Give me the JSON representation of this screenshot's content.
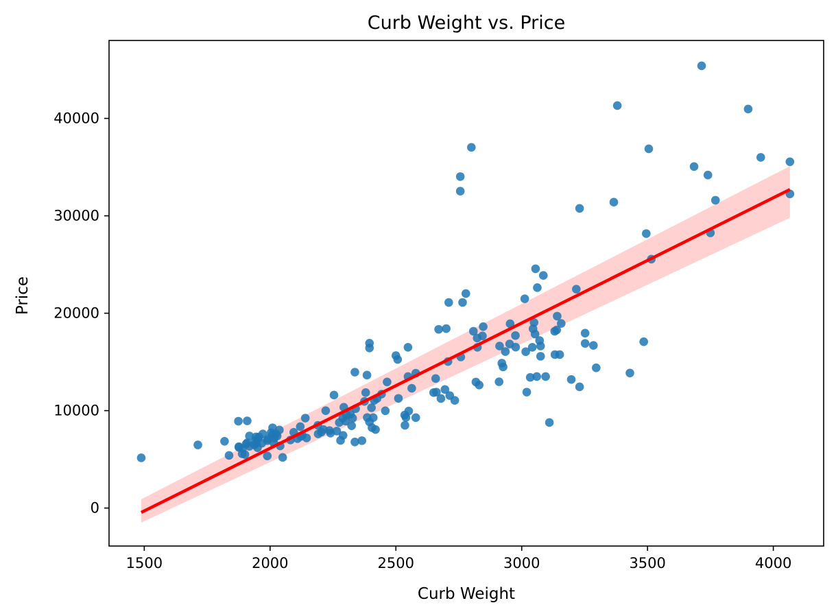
{
  "chart_data": {
    "type": "scatter",
    "title": "Curb Weight vs. Price",
    "xlabel": "Curb Weight",
    "ylabel": "Price",
    "xlim": [
      1360,
      4200
    ],
    "ylim": [
      -3900,
      48000
    ],
    "xticks": [
      1500,
      2000,
      2500,
      3000,
      3500,
      4000
    ],
    "yticks": [
      0,
      10000,
      20000,
      30000,
      40000
    ],
    "xtick_labels": [
      "1500",
      "2000",
      "2500",
      "3000",
      "3500",
      "4000"
    ],
    "ytick_labels": [
      "0",
      "10000",
      "20000",
      "30000",
      "40000"
    ],
    "grid": false,
    "colors": {
      "points": "#1f77b4",
      "regression_line": "#ff0000",
      "confidence_band": "#ffcccc"
    },
    "regression": {
      "x": [
        1488,
        4066
      ],
      "y": [
        -450,
        32700
      ],
      "ci_lower": [
        -1500,
        29800
      ],
      "ci_upper": [
        900,
        35100
      ]
    },
    "points": [
      [
        1488,
        5151
      ],
      [
        1713,
        6479
      ],
      [
        1819,
        6855
      ],
      [
        1837,
        5399
      ],
      [
        1874,
        8916
      ],
      [
        1876,
        6229
      ],
      [
        1876,
        6295
      ],
      [
        1889,
        5572
      ],
      [
        1890,
        6095
      ],
      [
        1900,
        5499
      ],
      [
        1905,
        6575
      ],
      [
        1909,
        6692
      ],
      [
        1909,
        8949
      ],
      [
        1918,
        7395
      ],
      [
        1918,
        6338
      ],
      [
        1938,
        6488
      ],
      [
        1940,
        6849
      ],
      [
        1944,
        7299
      ],
      [
        1945,
        6669
      ],
      [
        1950,
        6189
      ],
      [
        1951,
        7129
      ],
      [
        1956,
        7299
      ],
      [
        1967,
        6649
      ],
      [
        1971,
        7609
      ],
      [
        1989,
        5348
      ],
      [
        1989,
        6918
      ],
      [
        1992,
        7099
      ],
      [
        2004,
        7738
      ],
      [
        2008,
        7499
      ],
      [
        2010,
        8238
      ],
      [
        2015,
        6669
      ],
      [
        2017,
        7198
      ],
      [
        2024,
        7603
      ],
      [
        2028,
        7395
      ],
      [
        2037,
        8013
      ],
      [
        2040,
        6377
      ],
      [
        2050,
        5195
      ],
      [
        2081,
        6989
      ],
      [
        2094,
        7775
      ],
      [
        2109,
        7126
      ],
      [
        2120,
        8358
      ],
      [
        2122,
        7349
      ],
      [
        2128,
        7463
      ],
      [
        2140,
        9233
      ],
      [
        2145,
        7198
      ],
      [
        2190,
        8495
      ],
      [
        2191,
        7609
      ],
      [
        2204,
        7788
      ],
      [
        2212,
        8058
      ],
      [
        2221,
        9995
      ],
      [
        2236,
        7957
      ],
      [
        2240,
        7689
      ],
      [
        2254,
        11595
      ],
      [
        2265,
        7898
      ],
      [
        2275,
        8778
      ],
      [
        2280,
        6938
      ],
      [
        2289,
        9258
      ],
      [
        2290,
        7462
      ],
      [
        2293,
        10345
      ],
      [
        2300,
        8921
      ],
      [
        2304,
        9538
      ],
      [
        2319,
        9639
      ],
      [
        2324,
        8449
      ],
      [
        2328,
        9233
      ],
      [
        2337,
        6785
      ],
      [
        2337,
        13950
      ],
      [
        2340,
        10198
      ],
      [
        2365,
        6918
      ],
      [
        2375,
        10945
      ],
      [
        2380,
        11850
      ],
      [
        2385,
        13645
      ],
      [
        2386,
        9295
      ],
      [
        2395,
        8845
      ],
      [
        2395,
        16925
      ],
      [
        2395,
        16430
      ],
      [
        2403,
        10295
      ],
      [
        2405,
        8249
      ],
      [
        2410,
        9279
      ],
      [
        2414,
        11048
      ],
      [
        2419,
        8058
      ],
      [
        2425,
        11245
      ],
      [
        2443,
        11694
      ],
      [
        2458,
        9989
      ],
      [
        2465,
        12945
      ],
      [
        2500,
        15645
      ],
      [
        2507,
        15250
      ],
      [
        2510,
        11259
      ],
      [
        2535,
        9549
      ],
      [
        2536,
        8495
      ],
      [
        2540,
        9298
      ],
      [
        2548,
        13499
      ],
      [
        2548,
        16500
      ],
      [
        2551,
        9960
      ],
      [
        2563,
        12290
      ],
      [
        2579,
        9279
      ],
      [
        2579,
        13845
      ],
      [
        2650,
        11850
      ],
      [
        2658,
        13295
      ],
      [
        2661,
        11900
      ],
      [
        2670,
        18344
      ],
      [
        2679,
        11245
      ],
      [
        2695,
        12170
      ],
      [
        2700,
        18420
      ],
      [
        2707,
        15040
      ],
      [
        2710,
        21105
      ],
      [
        2714,
        11549
      ],
      [
        2734,
        11048
      ],
      [
        2756,
        32528
      ],
      [
        2756,
        34028
      ],
      [
        2758,
        15510
      ],
      [
        2765,
        21105
      ],
      [
        2778,
        22018
      ],
      [
        2800,
        37028
      ],
      [
        2808,
        18150
      ],
      [
        2818,
        12940
      ],
      [
        2823,
        17450
      ],
      [
        2824,
        16503
      ],
      [
        2831,
        12629
      ],
      [
        2844,
        17669
      ],
      [
        2847,
        18620
      ],
      [
        2910,
        12964
      ],
      [
        2912,
        16630
      ],
      [
        2921,
        14869
      ],
      [
        2926,
        14489
      ],
      [
        2935,
        16058
      ],
      [
        2952,
        16845
      ],
      [
        2954,
        18920
      ],
      [
        2975,
        17710
      ],
      [
        2976,
        16515
      ],
      [
        3012,
        21485
      ],
      [
        3016,
        16049
      ],
      [
        3020,
        11900
      ],
      [
        3034,
        13415
      ],
      [
        3042,
        16500
      ],
      [
        3045,
        18399
      ],
      [
        3049,
        19045
      ],
      [
        3053,
        17859
      ],
      [
        3055,
        24565
      ],
      [
        3060,
        13499
      ],
      [
        3062,
        22625
      ],
      [
        3071,
        17199
      ],
      [
        3075,
        15580
      ],
      [
        3075,
        16630
      ],
      [
        3086,
        23875
      ],
      [
        3095,
        13499
      ],
      [
        3110,
        8778
      ],
      [
        3131,
        18150
      ],
      [
        3132,
        15750
      ],
      [
        3139,
        18280
      ],
      [
        3141,
        19699
      ],
      [
        3151,
        15750
      ],
      [
        3157,
        18950
      ],
      [
        3197,
        13200
      ],
      [
        3217,
        22470
      ],
      [
        3230,
        12440
      ],
      [
        3230,
        30760
      ],
      [
        3252,
        16900
      ],
      [
        3252,
        17950
      ],
      [
        3285,
        16695
      ],
      [
        3296,
        14399
      ],
      [
        3366,
        31400
      ],
      [
        3380,
        41315
      ],
      [
        3430,
        13860
      ],
      [
        3485,
        17075
      ],
      [
        3495,
        28176
      ],
      [
        3505,
        36880
      ],
      [
        3515,
        25552
      ],
      [
        3685,
        35056
      ],
      [
        3715,
        45400
      ],
      [
        3740,
        34184
      ],
      [
        3750,
        28248
      ],
      [
        3770,
        31600
      ],
      [
        3900,
        40960
      ],
      [
        3950,
        36000
      ],
      [
        4066,
        35550
      ],
      [
        4066,
        32250
      ]
    ]
  }
}
